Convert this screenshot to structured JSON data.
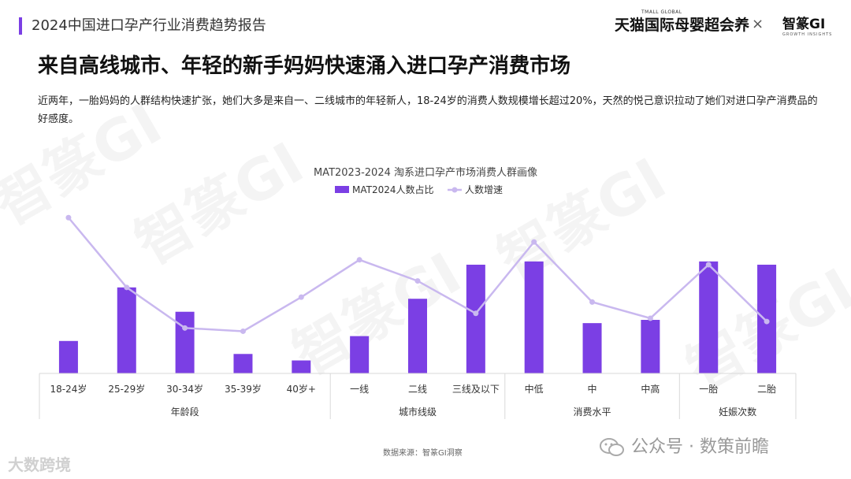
{
  "header": {
    "report_title": "2024中国进口孕产行业消费趋势报告",
    "brand_tmall": "天猫国际母婴超会养",
    "brand_tmall_small": "TMALL GLOBAL",
    "brand_separator": "×",
    "brand_gi": "智篆GI",
    "brand_gi_small": "GROWTH INSIGHTS"
  },
  "main": {
    "title": "来自高线城市、年轻的新手妈妈快速涌入进口孕产消费市场",
    "description": "近两年，一胎妈妈的人群结构快速扩张，她们大多是来自一、二线城市的年轻新人，18-24岁的消费人数规模增长超过20%，天然的悦己意识拉动了她们对进口孕产消费品的好感度。"
  },
  "chart_data": {
    "type": "bar",
    "title": "MAT2023-2024 淘系进口孕产市场消费人群画像",
    "categories": [
      "18-24岁",
      "25-29岁",
      "30-34岁",
      "35-39岁",
      "40岁+",
      "一线",
      "二线",
      "三线及以下",
      "中低",
      "中",
      "中高",
      "一胎",
      "二胎"
    ],
    "groups": [
      {
        "name": "年龄段",
        "count": 5
      },
      {
        "name": "城市线级",
        "count": 3
      },
      {
        "name": "消费水平",
        "count": 3
      },
      {
        "name": "妊娠次数",
        "count": 2
      }
    ],
    "series": [
      {
        "name": "MAT2024人数占比",
        "type": "bar",
        "color": "#7b3fe4",
        "values": [
          20,
          53,
          38,
          12,
          8,
          23,
          46,
          67,
          69,
          31,
          33,
          69,
          67
        ]
      },
      {
        "name": "人数增速",
        "type": "line",
        "color": "#c9b8ef",
        "values": [
          96,
          53,
          28,
          26,
          47,
          70,
          57,
          37,
          81,
          44,
          34,
          67,
          32
        ]
      }
    ],
    "legend": "top-center",
    "grid": false,
    "axes_visible": false
  },
  "footer": {
    "source": "数据来源：智篆GI洞察",
    "left_mark": "大数跨境",
    "right_mark": "公众号 · 数策前瞻"
  }
}
